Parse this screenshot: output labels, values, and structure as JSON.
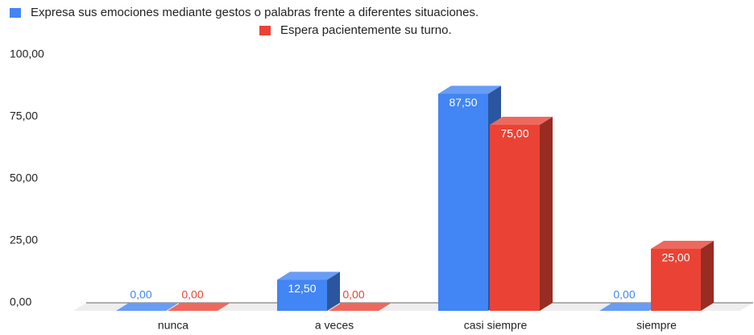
{
  "chart_data": {
    "type": "bar3d",
    "categories": [
      "nunca",
      "a veces",
      "casi siempre",
      "siempre"
    ],
    "series": [
      {
        "name": "Expresa sus emociones mediante gestos o palabras frente a diferentes situaciones.",
        "color": "#4285f4",
        "values": [
          0,
          12.5,
          87.5,
          0
        ],
        "value_labels": [
          "0,00",
          "12,50",
          "87,50",
          "0,00"
        ]
      },
      {
        "name": "Espera pacientemente su turno.",
        "color": "#ea4335",
        "values": [
          0,
          0,
          75,
          25
        ],
        "value_labels": [
          "0,00",
          "0,00",
          "75,00",
          "25,00"
        ]
      }
    ],
    "ylim": [
      0,
      100
    ],
    "yticks": [
      {
        "value": 0,
        "label": "0,00"
      },
      {
        "value": 25,
        "label": "25,00"
      },
      {
        "value": 50,
        "label": "50,00"
      },
      {
        "value": 75,
        "label": "75,00"
      },
      {
        "value": 100,
        "label": "100,00"
      }
    ],
    "legend": "top"
  }
}
